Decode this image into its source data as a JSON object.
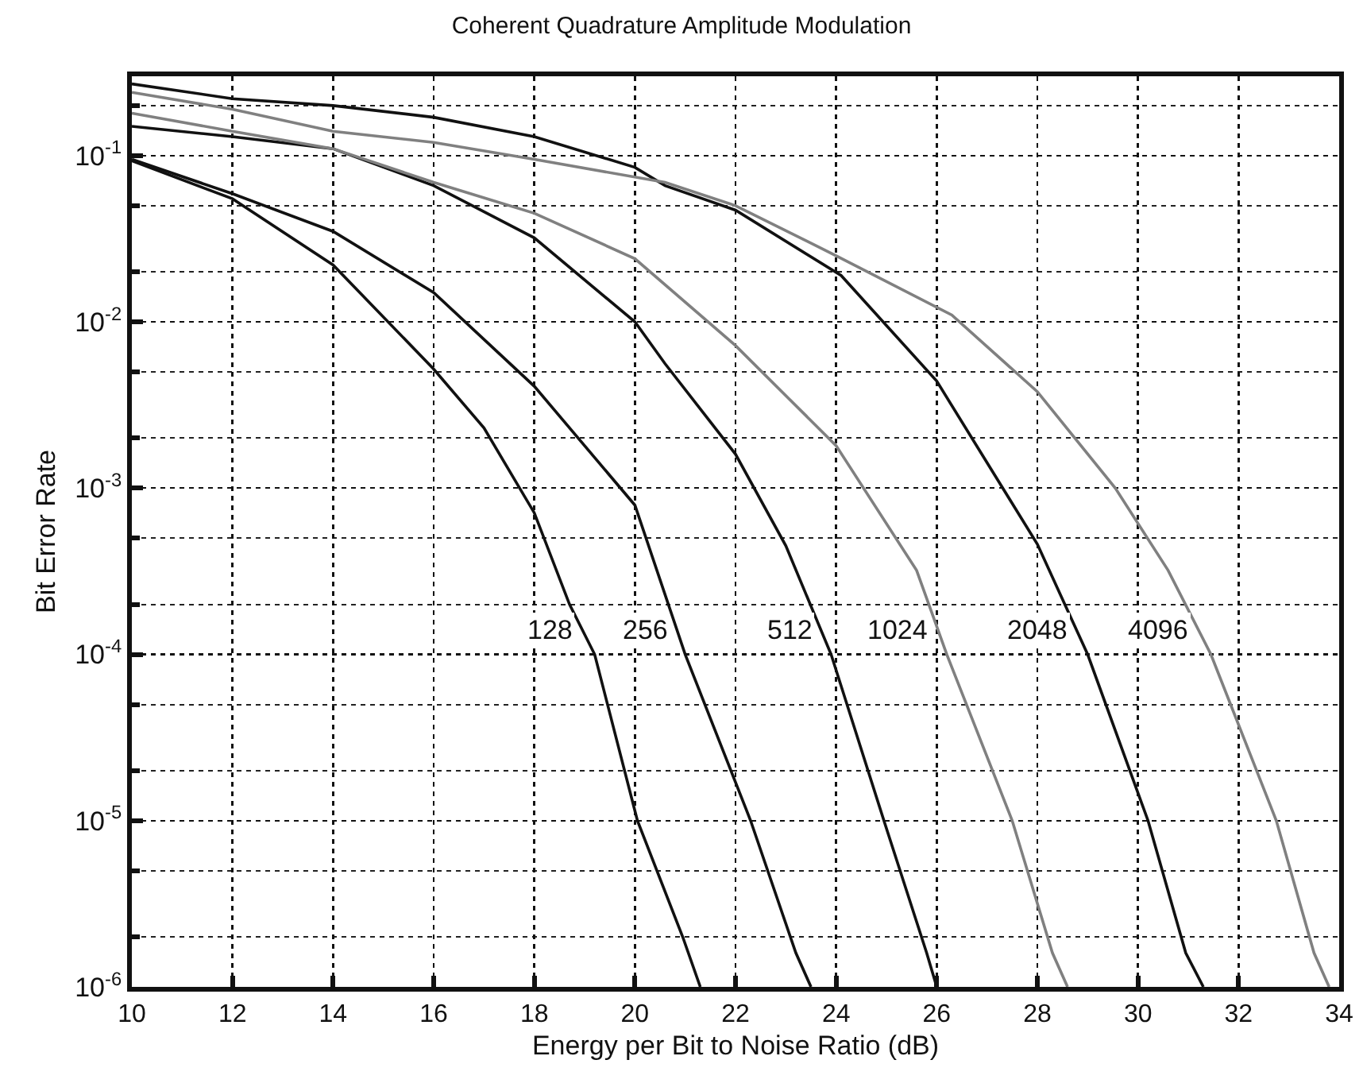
{
  "chart_data": {
    "type": "line",
    "title": "Coherent Quadrature Amplitude Modulation",
    "xlabel": "Energy per Bit to Noise Ratio (dB)",
    "ylabel": "Bit Error Rate",
    "log": "y",
    "grid": true,
    "legend": false,
    "marker": "none",
    "line_style": "solid",
    "xlim": [
      10,
      34
    ],
    "xticks": [
      10,
      12,
      14,
      16,
      18,
      20,
      22,
      24,
      26,
      28,
      30,
      32,
      34
    ],
    "ylim": [
      1e-06,
      0.3
    ],
    "yticks": [
      {
        "value": 0.1,
        "label": "10$^{-1}$"
      },
      {
        "value": 0.01,
        "label": "10$^{-2}$"
      },
      {
        "value": 0.001,
        "label": "10$^{-3}$"
      },
      {
        "value": 0.0001,
        "label": "10$^{-4}$"
      },
      {
        "value": 1e-05,
        "label": "10$^{-5}$"
      },
      {
        "value": 1e-06,
        "label": "10$^{-6}$"
      }
    ],
    "series": [
      {
        "name": "128",
        "color": "#111111",
        "x": [
          10,
          12,
          14,
          16,
          17,
          18,
          18.7,
          19.2,
          20.05,
          20.95,
          21.3
        ],
        "values": [
          0.093,
          0.055,
          0.022,
          0.0052,
          0.0023,
          0.00071,
          0.0002,
          0.0001,
          1e-05,
          2e-06,
          1e-06
        ]
      },
      {
        "name": "256",
        "color": "#111111",
        "x": [
          10,
          12,
          14,
          16,
          18,
          20,
          21,
          22.3,
          23.2,
          23.5
        ],
        "values": [
          0.095,
          0.059,
          0.035,
          0.015,
          0.0041,
          0.00079,
          0.0001,
          1e-05,
          1.6e-06,
          1e-06
        ]
      },
      {
        "name": "512",
        "color": "#111111",
        "x": [
          10,
          12,
          14,
          16,
          18,
          20,
          20.6,
          22,
          23,
          23.9,
          24.95,
          25.8,
          26
        ],
        "values": [
          0.15,
          0.13,
          0.11,
          0.066,
          0.032,
          0.01,
          0.0056,
          0.0016,
          0.00045,
          0.0001,
          1e-05,
          1.6e-06,
          1e-06
        ]
      },
      {
        "name": "1024",
        "color": "#808080",
        "x": [
          10,
          12,
          14,
          16,
          18,
          20,
          22,
          24,
          25.6,
          26.2,
          27.5,
          28.3,
          28.6
        ],
        "values": [
          0.18,
          0.14,
          0.11,
          0.069,
          0.045,
          0.024,
          0.0072,
          0.0018,
          0.00032,
          0.0001,
          1e-05,
          1.6e-06,
          1e-06
        ]
      },
      {
        "name": "2048",
        "color": "#111111",
        "x": [
          10,
          12,
          14,
          16,
          18,
          20,
          20.6,
          22,
          24.1,
          26,
          28,
          29,
          30.2,
          30.95,
          31.3
        ],
        "values": [
          0.27,
          0.22,
          0.2,
          0.17,
          0.13,
          0.085,
          0.066,
          0.047,
          0.019,
          0.0044,
          0.00046,
          0.0001,
          1e-05,
          1.6e-06,
          1e-06
        ]
      },
      {
        "name": "4096",
        "color": "#808080",
        "x": [
          10,
          12,
          14,
          16,
          18,
          20.6,
          22,
          24,
          26.3,
          28,
          29.55,
          30.6,
          31.45,
          32.75,
          33.5,
          33.8
        ],
        "values": [
          0.24,
          0.19,
          0.14,
          0.12,
          0.095,
          0.069,
          0.05,
          0.025,
          0.011,
          0.0038,
          0.001,
          0.00032,
          0.0001,
          1e-05,
          1.6e-06,
          1e-06
        ]
      }
    ]
  }
}
